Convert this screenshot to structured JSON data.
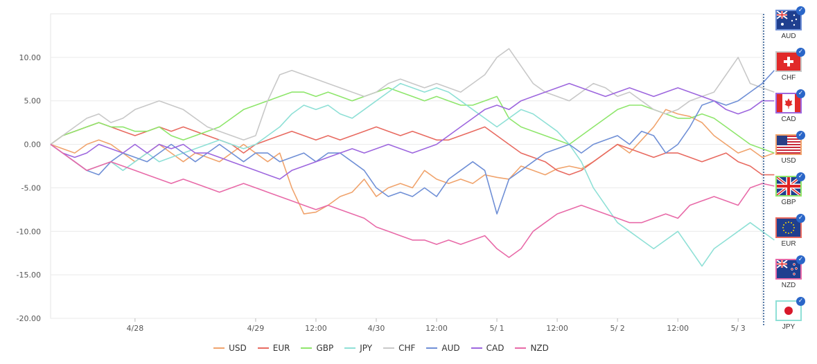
{
  "chart_data": {
    "type": "line",
    "ylim": [
      -20,
      15
    ],
    "y_ticks": [
      "10.00",
      "5.00",
      "0.00",
      "-5.00",
      "-10.00",
      "-15.00",
      "-20.00"
    ],
    "x_ticks": [
      {
        "label": "4/28",
        "x": 8
      },
      {
        "label": "4/29",
        "x": 18
      },
      {
        "label": "12:00",
        "x": 23
      },
      {
        "label": "4/30",
        "x": 28
      },
      {
        "label": "12:00",
        "x": 33
      },
      {
        "label": "5/ 1",
        "x": 38
      },
      {
        "label": "12:00",
        "x": 43
      },
      {
        "label": "5/ 2",
        "x": 48
      },
      {
        "label": "12:00",
        "x": 53
      },
      {
        "label": "5/ 3",
        "x": 58
      }
    ],
    "xlim": [
      1,
      60
    ],
    "grid": true,
    "legend_position": "bottom",
    "series": [
      {
        "name": "USD",
        "color": "#f0a36c",
        "values": [
          0,
          -0.5,
          -1,
          0,
          0.5,
          0,
          -1,
          -2,
          -1,
          0,
          -1,
          -2,
          -1,
          -1.5,
          -2,
          -1,
          0,
          -1,
          -2,
          -1,
          -5,
          -8,
          -7.8,
          -7,
          -6,
          -5.5,
          -4,
          -6,
          -5,
          -4.5,
          -5,
          -3,
          -4,
          -4.5,
          -4,
          -4.5,
          -3.5,
          -3.8,
          -4,
          -2.5,
          -3,
          -3.5,
          -2.8,
          -2.5,
          -2.8,
          -2,
          -1,
          0,
          -1,
          0.5,
          2,
          4,
          3.5,
          3.2,
          2.5,
          1,
          0,
          -1,
          -0.5,
          -1.5,
          -1
        ]
      },
      {
        "name": "EUR",
        "color": "#e86a60",
        "values": [
          0,
          1,
          1.5,
          2,
          2.5,
          2,
          1.5,
          1,
          1.5,
          2,
          1.5,
          2,
          1.5,
          1,
          0.5,
          0,
          -1,
          0,
          0.5,
          1,
          1.5,
          1,
          0.5,
          1,
          0.5,
          1,
          1.5,
          2,
          1.5,
          1,
          1.5,
          1,
          0.5,
          0.5,
          1,
          1.5,
          2,
          1,
          0,
          -1,
          -1.5,
          -2,
          -3,
          -3.5,
          -3,
          -2,
          -1,
          0,
          -0.5,
          -1,
          -1.5,
          -1,
          -1,
          -1.5,
          -2,
          -1.5,
          -1,
          -2,
          -2.5,
          -3.5,
          -3.5
        ]
      },
      {
        "name": "GBP",
        "color": "#8ee66b",
        "values": [
          0,
          1,
          1.5,
          2,
          2.5,
          2,
          2,
          1.5,
          1.5,
          2,
          1,
          0.5,
          1,
          1.5,
          2,
          3,
          4,
          4.5,
          5,
          5.5,
          6,
          6,
          5.5,
          6,
          5.5,
          5,
          5.5,
          6,
          6.5,
          6,
          5.5,
          5,
          5.5,
          5,
          4.5,
          4.5,
          5,
          5.5,
          3,
          2,
          1.5,
          1,
          0.5,
          0,
          1,
          2,
          3,
          4,
          4.5,
          4.5,
          4,
          3.5,
          3,
          3,
          3.5,
          3,
          2,
          1,
          0,
          -0.5,
          -1
        ]
      },
      {
        "name": "JPY",
        "color": "#8ee0d6",
        "values": [
          0,
          -1,
          -2,
          -3,
          -2.5,
          -2,
          -3,
          -2,
          -1,
          -2,
          -1.5,
          -1,
          -0.5,
          0,
          0.5,
          0,
          -0.5,
          0,
          1,
          2,
          3.5,
          4.5,
          4,
          4.5,
          3.5,
          3,
          4,
          5,
          6,
          7,
          6.5,
          6,
          6.5,
          6,
          5,
          4,
          3,
          2,
          3,
          4,
          3.5,
          2.5,
          1.5,
          0,
          -2,
          -5,
          -7,
          -9,
          -10,
          -11,
          -12,
          -11,
          -10,
          -12,
          -14,
          -12,
          -11,
          -10,
          -9,
          -10,
          -11
        ]
      },
      {
        "name": "CHF",
        "color": "#c8c8c8",
        "values": [
          0,
          1,
          2,
          3,
          3.5,
          2.5,
          3,
          4,
          4.5,
          5,
          4.5,
          4,
          3,
          2,
          1.5,
          1,
          0.5,
          1,
          5,
          8,
          8.5,
          8,
          7.5,
          7,
          6.5,
          6,
          5.5,
          6,
          7,
          7.5,
          7,
          6.5,
          7,
          6.5,
          6,
          7,
          8,
          10,
          11,
          9,
          7,
          6,
          5.5,
          5,
          6,
          7,
          6.5,
          5.5,
          6,
          5,
          4,
          3.5,
          4,
          5,
          5.5,
          6,
          8,
          10,
          7,
          6.5,
          6
        ]
      },
      {
        "name": "AUD",
        "color": "#6f8fd6",
        "values": [
          0,
          -1,
          -2,
          -3,
          -3.5,
          -2,
          -1,
          -1.5,
          -2,
          -1,
          0,
          -1,
          -2,
          -1,
          0,
          -1,
          -2,
          -1,
          -1,
          -2,
          -1.5,
          -1,
          -2,
          -1,
          -1,
          -2,
          -3,
          -5,
          -6,
          -5.5,
          -6,
          -5,
          -6,
          -4,
          -3,
          -2,
          -3,
          -8,
          -4,
          -3,
          -2,
          -1,
          -0.5,
          0,
          -1,
          0,
          0.5,
          1,
          0,
          1.5,
          1,
          -1,
          0,
          2,
          4.5,
          5,
          4.5,
          5,
          6,
          7,
          8.5
        ]
      },
      {
        "name": "CAD",
        "color": "#9d66de",
        "values": [
          0,
          -1,
          -1.5,
          -1,
          0,
          -0.5,
          -1,
          0,
          -1,
          0,
          -0.5,
          0,
          -1,
          -1,
          -1.5,
          -2,
          -2.5,
          -3,
          -3.5,
          -4,
          -3,
          -2.5,
          -2,
          -1.5,
          -1,
          -0.5,
          -1,
          -0.5,
          0,
          -0.5,
          -1,
          -0.5,
          0,
          1,
          2,
          3,
          4,
          4.5,
          4,
          5,
          5.5,
          6,
          6.5,
          7,
          6.5,
          6,
          5.5,
          6,
          6.5,
          6,
          5.5,
          6,
          6.5,
          6,
          5.5,
          5,
          4,
          3.5,
          4,
          5,
          5
        ]
      },
      {
        "name": "NZD",
        "color": "#e86aa8",
        "values": [
          0,
          -1,
          -2,
          -3,
          -2.5,
          -2,
          -2.5,
          -3,
          -3.5,
          -4,
          -4.5,
          -4,
          -4.5,
          -5,
          -5.5,
          -5,
          -4.5,
          -5,
          -5.5,
          -6,
          -6.5,
          -7,
          -7.5,
          -7,
          -7.5,
          -8,
          -8.5,
          -9.5,
          -10,
          -10.5,
          -11,
          -11,
          -11.5,
          -11,
          -11.5,
          -11,
          -10.5,
          -12,
          -13,
          -12,
          -10,
          -9,
          -8,
          -7.5,
          -7,
          -7.5,
          -8,
          -8.5,
          -9,
          -9,
          -8.5,
          -8,
          -8.5,
          -7,
          -6.5,
          -6,
          -6.5,
          -7,
          -5,
          -4.5,
          -4.8
        ]
      }
    ]
  },
  "legend": [
    {
      "label": "USD",
      "color": "#f0a36c"
    },
    {
      "label": "EUR",
      "color": "#e86a60"
    },
    {
      "label": "GBP",
      "color": "#8ee66b"
    },
    {
      "label": "JPY",
      "color": "#8ee0d6"
    },
    {
      "label": "CHF",
      "color": "#c8c8c8"
    },
    {
      "label": "AUD",
      "color": "#6f8fd6"
    },
    {
      "label": "CAD",
      "color": "#9d66de"
    },
    {
      "label": "NZD",
      "color": "#e86aa8"
    }
  ],
  "flags": [
    {
      "label": "AUD",
      "icon": "australia-flag-icon",
      "border": "#6f8fd6"
    },
    {
      "label": "CHF",
      "icon": "switzerland-flag-icon",
      "border": "#c8c8c8"
    },
    {
      "label": "CAD",
      "icon": "canada-flag-icon",
      "border": "#9d66de"
    },
    {
      "label": "USD",
      "icon": "usa-flag-icon",
      "border": "#f0a36c"
    },
    {
      "label": "GBP",
      "icon": "uk-flag-icon",
      "border": "#8ee66b"
    },
    {
      "label": "EUR",
      "icon": "eu-flag-icon",
      "border": "#e86a60"
    },
    {
      "label": "NZD",
      "icon": "new-zealand-flag-icon",
      "border": "#e86aa8"
    },
    {
      "label": "JPY",
      "icon": "japan-flag-icon",
      "border": "#8ee0d6"
    }
  ]
}
